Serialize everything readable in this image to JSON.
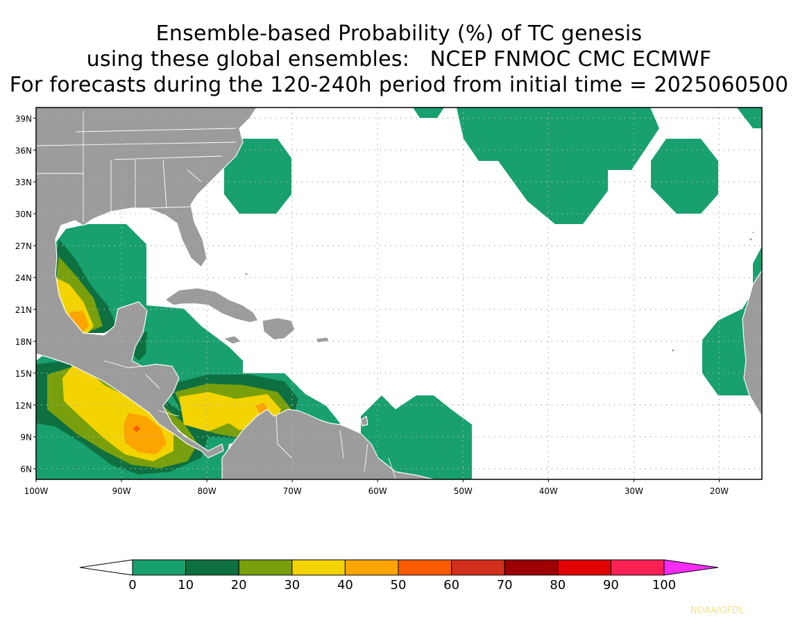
{
  "title": {
    "line1": "Ensemble-based Probability (%) of TC genesis",
    "line2": "using these global ensembles:   NCEP FNMOC CMC ECMWF",
    "line3": "For forecasts during the 120-240h period from initial time = 2025060500"
  },
  "lat_labels": [
    "39N",
    "36N",
    "33N",
    "30N",
    "27N",
    "24N",
    "21N",
    "18N",
    "15N",
    "12N",
    "9N",
    "6N"
  ],
  "lon_labels": [
    "100W",
    "90W",
    "80W",
    "70W",
    "60W",
    "50W",
    "40W",
    "30W",
    "20W"
  ],
  "colorbar": {
    "labels": [
      "0",
      "10",
      "20",
      "30",
      "40",
      "50",
      "60",
      "70",
      "80",
      "90",
      "100"
    ],
    "colors": [
      "#18a06e",
      "#0e7040",
      "#79a00c",
      "#f3d400",
      "#fca400",
      "#fc5c00",
      "#d2301a",
      "#9c0004",
      "#e20004",
      "#fc2055"
    ],
    "over_color": "#f42cf4",
    "under_color": "#ffffff"
  },
  "colors": {
    "land": "#9c9c9c",
    "coast": "#ffffff",
    "grid": "#b4b4b4"
  },
  "credit": "NOAA/GFDL"
}
